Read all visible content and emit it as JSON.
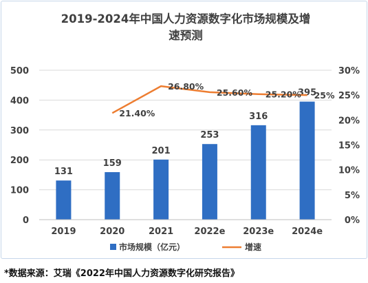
{
  "chart_data": {
    "type": "bar",
    "title_line1": "2019-2024年中国人力资源数字化市场规模及增",
    "title_line2": "速预测",
    "categories": [
      "2019",
      "2020",
      "2021",
      "2022e",
      "2023e",
      "2024e"
    ],
    "series": [
      {
        "name": "市场规模（亿元）",
        "type": "bar",
        "axis": "left",
        "color": "#2f6ec3",
        "values": [
          131,
          159,
          201,
          253,
          316,
          395
        ],
        "labels": [
          "131",
          "159",
          "201",
          "253",
          "316",
          "395"
        ]
      },
      {
        "name": "增速",
        "type": "line",
        "axis": "right",
        "color": "#ed7d31",
        "values": [
          null,
          21.4,
          26.8,
          25.6,
          25.2,
          25.0
        ],
        "labels": [
          "",
          "21.40%",
          "26.80%",
          "25.60%",
          "25.20%",
          "25%"
        ]
      }
    ],
    "y_left": {
      "min": 0,
      "max": 500,
      "ticks": [
        "0",
        "100",
        "200",
        "300",
        "400",
        "500"
      ]
    },
    "y_right": {
      "min": 0,
      "max": 30,
      "ticks": [
        "0%",
        "5%",
        "10%",
        "15%",
        "20%",
        "25%",
        "30%"
      ]
    },
    "grid": true,
    "legend": "bottom"
  },
  "source_note": "*数据来源：艾瑞《2022年中国人力资源数字化研究报告》"
}
